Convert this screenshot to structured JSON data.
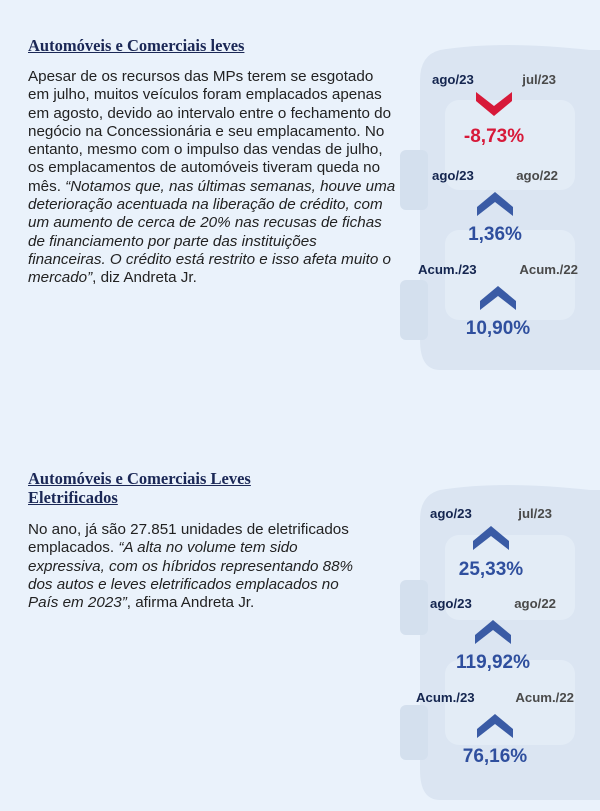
{
  "colors": {
    "up": "#3a5ba5",
    "down": "#d71939",
    "title": "#1b2856"
  },
  "section1": {
    "title": "Automóveis e Comerciais leves",
    "text_plain": "Apesar de os recursos das MPs terem se esgotado em julho, muitos veículos foram emplacados apenas em agosto, devido ao intervalo entre o fechamento do negócio na Concessionária e seu emplacamento. No entanto, mesmo com o impulso das vendas de julho, os emplacamentos de automóveis tiveram queda no mês. ",
    "text_quote": "“Notamos que, nas últimas semanas, houve uma deterioração acentuada na liberação de crédito, com um aumento de cerca de 20% nas recusas de fichas de financiamento por parte das instituições financeiras. O crédito está restrito e isso afeta muito o mercado”",
    "text_tail": ", diz Andreta Jr.",
    "stats": [
      {
        "label_a": "ago/23",
        "label_b": "jul/23",
        "value": "-8,73%",
        "direction": "down",
        "icon": "chevron-down-icon"
      },
      {
        "label_a": "ago/23",
        "label_b": "ago/22",
        "value": "1,36%",
        "direction": "up",
        "icon": "chevron-up-icon"
      },
      {
        "label_a": "Acum./23",
        "label_b": "Acum./22",
        "value": "10,90%",
        "direction": "up",
        "icon": "chevron-up-icon"
      }
    ]
  },
  "section2": {
    "title": "Automóveis e Comerciais Leves Eletrificados",
    "text_plain": "No ano, já são 27.851 unidades de eletrificados emplacados. ",
    "text_quote": "“A alta no volume tem sido expressiva, com os híbridos representando 88% dos autos e leves eletrificados emplacados no País em 2023”",
    "text_tail": ", afirma Andreta Jr.",
    "stats": [
      {
        "label_a": "ago/23",
        "label_b": "jul/23",
        "value": "25,33%",
        "direction": "up",
        "icon": "chevron-up-icon"
      },
      {
        "label_a": "ago/23",
        "label_b": "ago/22",
        "value": "119,92%",
        "direction": "up",
        "icon": "chevron-up-icon"
      },
      {
        "label_a": "Acum./23",
        "label_b": "Acum./22",
        "value": "76,16%",
        "direction": "up",
        "icon": "chevron-up-icon"
      }
    ]
  }
}
